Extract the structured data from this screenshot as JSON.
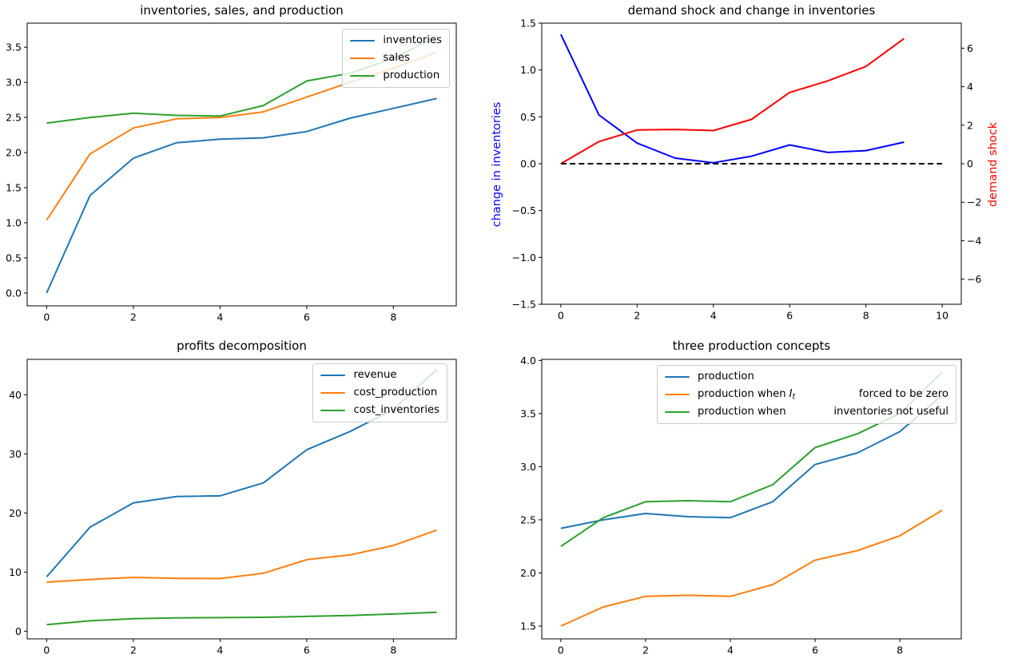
{
  "figure": {
    "background": "#ffffff",
    "text_color": "#000000",
    "spine_color": "#000000"
  },
  "chart_data": [
    {
      "id": "inventories-sales-production",
      "type": "line",
      "title": "inventories, sales, and production",
      "x": [
        0,
        1,
        2,
        3,
        4,
        5,
        6,
        7,
        8,
        9
      ],
      "xlim": [
        -0.45,
        9.45
      ],
      "ylim": [
        -0.183,
        3.843
      ],
      "grid": false,
      "legend_position": "upper right",
      "xticks": {
        "values": [
          0,
          2,
          4,
          6,
          8
        ],
        "labels": [
          "0",
          "2",
          "4",
          "6",
          "8"
        ]
      },
      "yticks": {
        "values": [
          0,
          0.5,
          1,
          1.5,
          2,
          2.5,
          3,
          3.5
        ],
        "labels": [
          "0.0",
          "0.5",
          "1.0",
          "1.5",
          "2.0",
          "2.5",
          "3.0",
          "3.5"
        ]
      },
      "series": [
        {
          "name": "inventories",
          "color": "#1f77b4",
          "values": [
            0.0,
            1.39,
            1.92,
            2.14,
            2.19,
            2.21,
            2.3,
            2.49,
            2.63,
            2.77
          ],
          "label_parts": [
            {
              "text": "inventories"
            }
          ]
        },
        {
          "name": "sales",
          "color": "#ff7f0e",
          "values": [
            1.04,
            1.98,
            2.35,
            2.48,
            2.5,
            2.58,
            2.79,
            3.0,
            3.2,
            3.43
          ],
          "label_parts": [
            {
              "text": "sales"
            }
          ]
        },
        {
          "name": "production",
          "color": "#2ca02c",
          "values": [
            2.42,
            2.5,
            2.56,
            2.53,
            2.52,
            2.67,
            3.02,
            3.13,
            3.34,
            3.66
          ],
          "label_parts": [
            {
              "text": "production"
            }
          ]
        }
      ]
    },
    {
      "id": "demand-shock-and-change-in-inventories",
      "type": "line",
      "title": "demand shock and change in inventories",
      "x": [
        0,
        1,
        2,
        3,
        4,
        5,
        6,
        7,
        8,
        9
      ],
      "xlim": [
        -0.5,
        10.5
      ],
      "ylim": [
        -1.5,
        1.5
      ],
      "ylim_right": [
        -7.3,
        7.3
      ],
      "grid": false,
      "xticks": {
        "values": [
          0,
          2,
          4,
          6,
          8,
          10
        ],
        "labels": [
          "0",
          "2",
          "4",
          "6",
          "8",
          "10"
        ]
      },
      "yticks": {
        "values": [
          -1.5,
          -1,
          -0.5,
          0,
          0.5,
          1,
          1.5
        ],
        "labels": [
          "−1.5",
          "−1.0",
          "−0.5",
          "0.0",
          "0.5",
          "1.0",
          "1.5"
        ]
      },
      "yticks_right": {
        "values": [
          -6,
          -4,
          -2,
          0,
          2,
          4,
          6
        ],
        "labels": [
          "−6",
          "−4",
          "−2",
          "0",
          "2",
          "4",
          "6"
        ]
      },
      "ylabel_left": {
        "text": "change in inventories",
        "color": "#0000ff"
      },
      "ylabel_right": {
        "text": "demand shock",
        "color": "#ff0000"
      },
      "series": [
        {
          "name": "change-in-inventories",
          "color": "#0000ff",
          "values": [
            1.38,
            0.52,
            0.22,
            0.06,
            0.01,
            0.08,
            0.2,
            0.12,
            0.14,
            0.23
          ]
        },
        {
          "name": "demand-shock",
          "color": "#ff0000",
          "axis": "right",
          "values": [
            0.0,
            1.15,
            1.75,
            1.78,
            1.72,
            2.3,
            3.7,
            4.3,
            5.05,
            6.5
          ]
        },
        {
          "name": "zero-line",
          "color": "#000000",
          "dash": true,
          "x": [
            0,
            10
          ],
          "values": [
            0,
            0
          ]
        }
      ]
    },
    {
      "id": "profits-decomposition",
      "type": "line",
      "title": "profits decomposition",
      "x": [
        0,
        1,
        2,
        3,
        4,
        5,
        6,
        7,
        8,
        9
      ],
      "xlim": [
        -0.45,
        9.45
      ],
      "ylim": [
        -1.3,
        46.0
      ],
      "grid": false,
      "legend_position": "upper right",
      "xticks": {
        "values": [
          0,
          2,
          4,
          6,
          8
        ],
        "labels": [
          "0",
          "2",
          "4",
          "6",
          "8"
        ]
      },
      "yticks": {
        "values": [
          0,
          10,
          20,
          30,
          40
        ],
        "labels": [
          "0",
          "10",
          "20",
          "30",
          "40"
        ]
      },
      "series": [
        {
          "name": "revenue",
          "color": "#1f77b4",
          "values": [
            9.2,
            17.6,
            21.7,
            22.8,
            22.9,
            25.1,
            30.7,
            33.8,
            37.5,
            44.3
          ],
          "label_parts": [
            {
              "text": "revenue"
            }
          ]
        },
        {
          "name": "cost_production",
          "color": "#ff7f0e",
          "values": [
            8.3,
            8.75,
            9.1,
            8.95,
            8.9,
            9.8,
            12.1,
            12.9,
            14.5,
            17.1
          ],
          "label_parts": [
            {
              "text": "cost_production"
            }
          ]
        },
        {
          "name": "cost_inventories",
          "color": "#2ca02c",
          "values": [
            1.1,
            1.75,
            2.1,
            2.25,
            2.3,
            2.35,
            2.5,
            2.65,
            2.9,
            3.2
          ],
          "label_parts": [
            {
              "text": "cost_inventories"
            }
          ]
        }
      ]
    },
    {
      "id": "three-production-concepts",
      "type": "line",
      "title": "three production concepts",
      "x": [
        0,
        1,
        2,
        3,
        4,
        5,
        6,
        7,
        8,
        9
      ],
      "xlim": [
        -0.45,
        9.45
      ],
      "ylim": [
        1.38,
        4.01
      ],
      "grid": false,
      "legend_position": "upper center",
      "xticks": {
        "values": [
          0,
          2,
          4,
          6,
          8
        ],
        "labels": [
          "0",
          "2",
          "4",
          "6",
          "8"
        ]
      },
      "yticks": {
        "values": [
          1.5,
          2,
          2.5,
          3,
          3.5,
          4
        ],
        "labels": [
          "1.5",
          "2.0",
          "2.5",
          "3.0",
          "3.5",
          "4.0"
        ]
      },
      "series": [
        {
          "name": "production",
          "color": "#1f77b4",
          "values": [
            2.42,
            2.5,
            2.56,
            2.53,
            2.52,
            2.67,
            3.02,
            3.13,
            3.33,
            3.67
          ],
          "label_parts": [
            {
              "text": "production"
            }
          ]
        },
        {
          "name": "production-when-It-forced-to-be-zero",
          "color": "#ff7f0e",
          "values": [
            1.5,
            1.68,
            1.78,
            1.79,
            1.78,
            1.89,
            2.12,
            2.21,
            2.35,
            2.59
          ],
          "label_parts": [
            {
              "text": "production when"
            },
            {
              "text": "I",
              "style": "math-var"
            },
            {
              "text": "t",
              "style": "math-sub"
            }
          ],
          "label_parts2": [
            {
              "text": "forced to be zero"
            }
          ]
        },
        {
          "name": "production-when-inventories-not-useful",
          "color": "#2ca02c",
          "values": [
            2.25,
            2.52,
            2.67,
            2.68,
            2.67,
            2.83,
            3.18,
            3.31,
            3.5,
            3.89
          ],
          "label_parts": [
            {
              "text": "production when"
            }
          ],
          "label_parts2": [
            {
              "text": "inventories not useful"
            }
          ]
        }
      ]
    }
  ]
}
